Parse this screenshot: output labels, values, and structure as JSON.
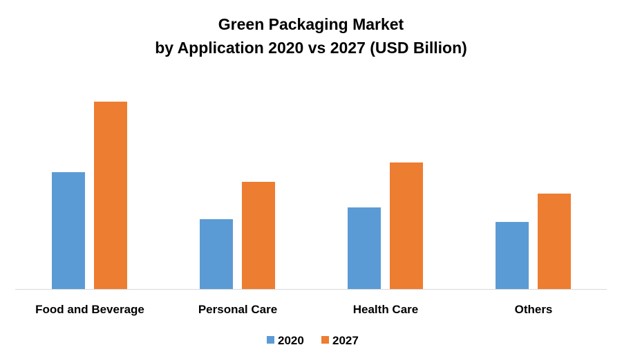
{
  "chart_data": {
    "type": "bar",
    "title": "Green Packaging Market",
    "subtitle": "by Application 2020 vs 2027 (USD Billion)",
    "categories": [
      "Food and Beverage",
      "Personal Care",
      "Health Care",
      "Others"
    ],
    "series": [
      {
        "name": "2020",
        "color": "#5B9BD5",
        "values": [
          16.9,
          10.1,
          11.8,
          9.7
        ]
      },
      {
        "name": "2027",
        "color": "#ED7D31",
        "values": [
          27.1,
          15.5,
          18.3,
          13.8
        ]
      }
    ],
    "xlabel": "",
    "ylabel": "",
    "ylim": [
      0,
      30
    ],
    "grid": false,
    "legend": "bottom-center",
    "note": "values are relative estimates; no y-axis shown"
  }
}
